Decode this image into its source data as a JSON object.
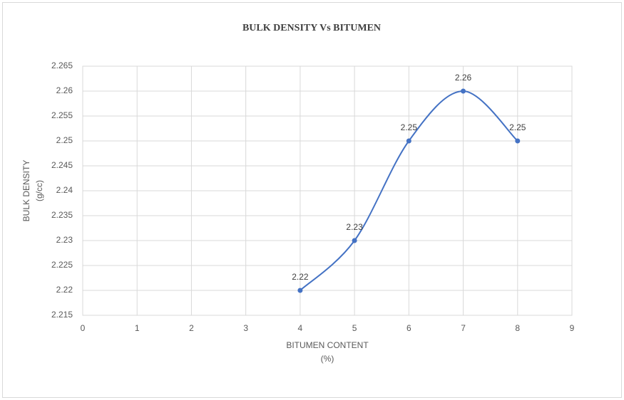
{
  "chart_data": {
    "type": "line",
    "title": "BULK DENSITY Vs BITUMEN",
    "x_label": [
      "BITUMEN CONTENT",
      "(%)"
    ],
    "y_label": [
      "BULK DENSITY",
      "(g/cc)"
    ],
    "x": [
      4,
      5,
      6,
      7,
      8
    ],
    "series": [
      {
        "color": "#4472c4",
        "values": [
          2.22,
          2.23,
          2.25,
          2.26,
          2.25
        ]
      }
    ],
    "smooth": true,
    "data_labels": true,
    "xlim": [
      0,
      9
    ],
    "xticks": [
      0,
      1,
      2,
      3,
      4,
      5,
      6,
      7,
      8,
      9
    ],
    "ylim": [
      2.215,
      2.265
    ],
    "yticks": [
      2.215,
      2.22,
      2.225,
      2.23,
      2.235,
      2.24,
      2.245,
      2.25,
      2.255,
      2.26,
      2.265
    ],
    "grid": true
  }
}
